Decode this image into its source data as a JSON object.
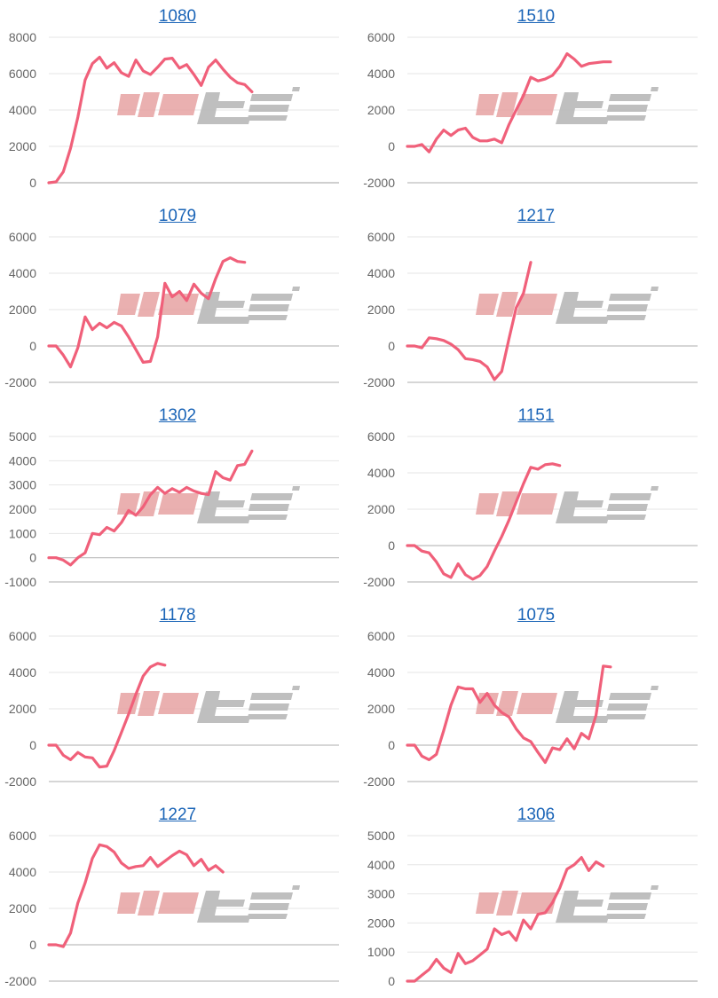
{
  "colors": {
    "line": "#f0607a",
    "grid": "#e6e6e6",
    "axis": "#bdbdbd",
    "title": "#1a64b7",
    "watermark_pink": "#e7a3a3",
    "watermark_gray": "#b5b5b5"
  },
  "watermark_icon": "minrepo-watermark-logo",
  "chart_data": [
    {
      "type": "line",
      "title": "1080",
      "ylim": [
        0,
        8000
      ],
      "yticks": [
        0,
        2000,
        4000,
        6000,
        8000
      ],
      "values": [
        0,
        50,
        600,
        1900,
        3600,
        5650,
        6550,
        6900,
        6300,
        6600,
        6050,
        5850,
        6750,
        6150,
        5950,
        6350,
        6800,
        6850,
        6300,
        6500,
        5950,
        5350,
        6350,
        6750,
        6250,
        5800,
        5500,
        5400,
        5000
      ]
    },
    {
      "type": "line",
      "title": "1510",
      "ylim": [
        -2000,
        6000
      ],
      "yticks": [
        -2000,
        0,
        2000,
        4000,
        6000
      ],
      "values": [
        0,
        0,
        100,
        -300,
        400,
        900,
        600,
        900,
        1000,
        500,
        300,
        300,
        400,
        200,
        1200,
        2000,
        2800,
        3800,
        3600,
        3700,
        3900,
        4400,
        5100,
        4800,
        4400,
        4550,
        4600,
        4650,
        4650
      ]
    },
    {
      "type": "line",
      "title": "1079",
      "ylim": [
        -2000,
        6000
      ],
      "yticks": [
        -2000,
        0,
        2000,
        4000,
        6000
      ],
      "values": [
        0,
        0,
        -500,
        -1150,
        -100,
        1600,
        900,
        1250,
        1000,
        1300,
        1100,
        500,
        -200,
        -900,
        -850,
        500,
        3450,
        2700,
        3000,
        2500,
        3400,
        2900,
        2600,
        3700,
        4650,
        4850,
        4650,
        4600
      ]
    },
    {
      "type": "line",
      "title": "1217",
      "ylim": [
        -2000,
        6000
      ],
      "yticks": [
        -2000,
        0,
        2000,
        4000,
        6000
      ],
      "values": [
        0,
        0,
        -100,
        450,
        400,
        300,
        100,
        -200,
        -700,
        -750,
        -850,
        -1150,
        -1850,
        -1400,
        400,
        2100,
        2900,
        4600
      ]
    },
    {
      "type": "line",
      "title": "1302",
      "ylim": [
        -1000,
        5000
      ],
      "yticks": [
        -1000,
        0,
        1000,
        2000,
        3000,
        4000,
        5000
      ],
      "values": [
        0,
        0,
        -100,
        -300,
        0,
        200,
        1000,
        950,
        1250,
        1100,
        1450,
        1950,
        1750,
        2100,
        2600,
        2900,
        2650,
        2850,
        2700,
        2900,
        2750,
        2650,
        2600,
        3550,
        3300,
        3200,
        3800,
        3850,
        4400
      ]
    },
    {
      "type": "line",
      "title": "1151",
      "ylim": [
        -2000,
        6000
      ],
      "yticks": [
        -2000,
        0,
        2000,
        4000,
        6000
      ],
      "values": [
        0,
        0,
        -300,
        -400,
        -900,
        -1550,
        -1750,
        -1000,
        -1600,
        -1850,
        -1650,
        -1150,
        -300,
        500,
        1400,
        2400,
        3400,
        4300,
        4200,
        4450,
        4500,
        4400
      ]
    },
    {
      "type": "line",
      "title": "1178",
      "ylim": [
        -2000,
        6000
      ],
      "yticks": [
        -2000,
        0,
        2000,
        4000,
        6000
      ],
      "values": [
        0,
        0,
        -550,
        -800,
        -400,
        -650,
        -700,
        -1200,
        -1150,
        -300,
        700,
        1700,
        2800,
        3800,
        4300,
        4500,
        4400
      ]
    },
    {
      "type": "line",
      "title": "1075",
      "ylim": [
        -2000,
        6000
      ],
      "yticks": [
        -2000,
        0,
        2000,
        4000,
        6000
      ],
      "values": [
        0,
        0,
        -600,
        -800,
        -500,
        800,
        2200,
        3200,
        3100,
        3100,
        2350,
        2850,
        2200,
        1800,
        1550,
        900,
        400,
        200,
        -400,
        -950,
        -150,
        -250,
        350,
        -200,
        650,
        350,
        1650,
        4350,
        4300
      ]
    },
    {
      "type": "line",
      "title": "1227",
      "ylim": [
        -2000,
        6000
      ],
      "yticks": [
        -2000,
        0,
        2000,
        4000,
        6000
      ],
      "values": [
        0,
        0,
        -100,
        650,
        2300,
        3400,
        4750,
        5500,
        5400,
        5100,
        4500,
        4200,
        4300,
        4350,
        4800,
        4300,
        4600,
        4900,
        5150,
        4950,
        4350,
        4700,
        4100,
        4350,
        4000
      ]
    },
    {
      "type": "line",
      "title": "1306",
      "ylim": [
        0,
        5000
      ],
      "yticks": [
        0,
        1000,
        2000,
        3000,
        4000,
        5000
      ],
      "values": [
        0,
        0,
        200,
        400,
        750,
        450,
        300,
        950,
        600,
        700,
        900,
        1100,
        1800,
        1600,
        1700,
        1400,
        2100,
        1800,
        2300,
        2350,
        2700,
        3200,
        3850,
        4000,
        4250,
        3800,
        4100,
        3950
      ]
    }
  ]
}
